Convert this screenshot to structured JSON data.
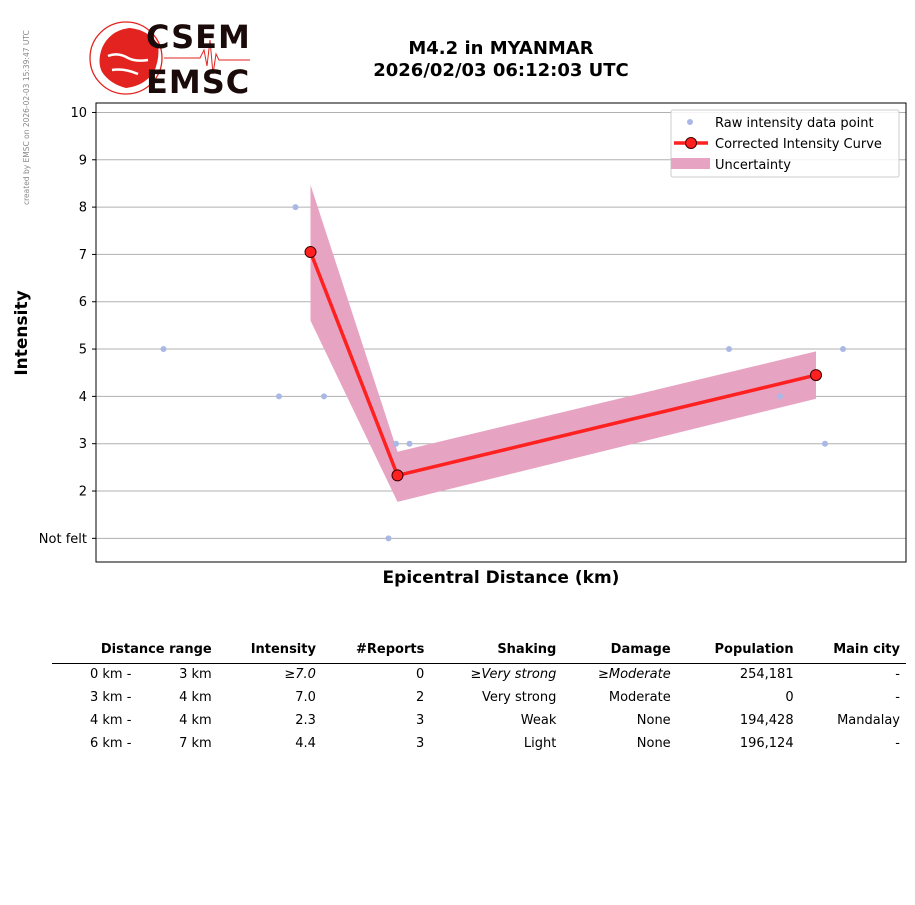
{
  "side_note": "created by EMSC on 2026-02-03 15:39:47 UTC",
  "logo": {
    "line1": "CSEM",
    "line2": "EMSC",
    "colors": {
      "red": "#e3231f",
      "dark": "#1b0a0a"
    }
  },
  "title": {
    "line1": "M4.2 in MYANMAR",
    "line2": "2026/02/03 06:12:03 UTC"
  },
  "chart_data": {
    "type": "scatter",
    "xlabel": "Epicentral Distance (km)",
    "ylabel": "Intensity",
    "ylim": [
      0.5,
      10.2
    ],
    "yticks": [
      1,
      2,
      3,
      4,
      5,
      6,
      7,
      8,
      9,
      10
    ],
    "ytick_labels": [
      "Not felt",
      "2",
      "3",
      "4",
      "5",
      "6",
      "7",
      "8",
      "9",
      "10"
    ],
    "xlim": [
      1.8,
      7.2
    ],
    "grid": "horizontal",
    "legend_position": "top-right",
    "legend": [
      "Raw intensity data point",
      "Corrected Intensity Curve",
      "Uncertainty"
    ],
    "raw_points": [
      {
        "x": 2.25,
        "y": 5
      },
      {
        "x": 3.02,
        "y": 4
      },
      {
        "x": 3.13,
        "y": 8
      },
      {
        "x": 3.32,
        "y": 4
      },
      {
        "x": 3.75,
        "y": 1
      },
      {
        "x": 3.8,
        "y": 3
      },
      {
        "x": 3.89,
        "y": 3
      },
      {
        "x": 6.02,
        "y": 5
      },
      {
        "x": 6.36,
        "y": 4
      },
      {
        "x": 6.66,
        "y": 3
      },
      {
        "x": 6.78,
        "y": 5
      }
    ],
    "curve": [
      {
        "x": 3.23,
        "y": 7.05
      },
      {
        "x": 3.81,
        "y": 2.33
      },
      {
        "x": 6.6,
        "y": 4.45
      }
    ],
    "uncertainty": [
      {
        "x": 3.23,
        "upper": 8.47,
        "lower": 5.6
      },
      {
        "x": 3.81,
        "upper": 2.83,
        "lower": 1.77
      },
      {
        "x": 6.6,
        "upper": 4.95,
        "lower": 3.95
      }
    ],
    "colors": {
      "raw": "#aab8e6",
      "curve": "#ff2020",
      "marker_edge": "#3a0000",
      "band": "#e7a3c2",
      "grid": "#b0b0b0"
    }
  },
  "table": {
    "headers": [
      "Distance range",
      "Intensity",
      "#Reports",
      "Shaking",
      "Damage",
      "Population",
      "Main city"
    ],
    "rows": [
      {
        "from": "0 km -",
        "to": "3 km",
        "intensity": "≥",
        "intensity_value": "7.0",
        "reports": "0",
        "shaking_prefix": "≥",
        "shaking": "Very strong",
        "damage_prefix": "≥",
        "damage": "Moderate",
        "population": "254,181",
        "city": "-",
        "italic": true
      },
      {
        "from": "3 km -",
        "to": "4 km",
        "intensity": "",
        "intensity_value": "7.0",
        "reports": "2",
        "shaking_prefix": "",
        "shaking": "Very strong",
        "damage_prefix": "",
        "damage": "Moderate",
        "population": "0",
        "city": "-",
        "italic": false
      },
      {
        "from": "4 km -",
        "to": "4 km",
        "intensity": "",
        "intensity_value": "2.3",
        "reports": "3",
        "shaking_prefix": "",
        "shaking": "Weak",
        "damage_prefix": "",
        "damage": "None",
        "population": "194,428",
        "city": "Mandalay",
        "italic": false
      },
      {
        "from": "6 km -",
        "to": "7 km",
        "intensity": "",
        "intensity_value": "4.4",
        "reports": "3",
        "shaking_prefix": "",
        "shaking": "Light",
        "damage_prefix": "",
        "damage": "None",
        "population": "196,124",
        "city": "-",
        "italic": false
      }
    ]
  }
}
